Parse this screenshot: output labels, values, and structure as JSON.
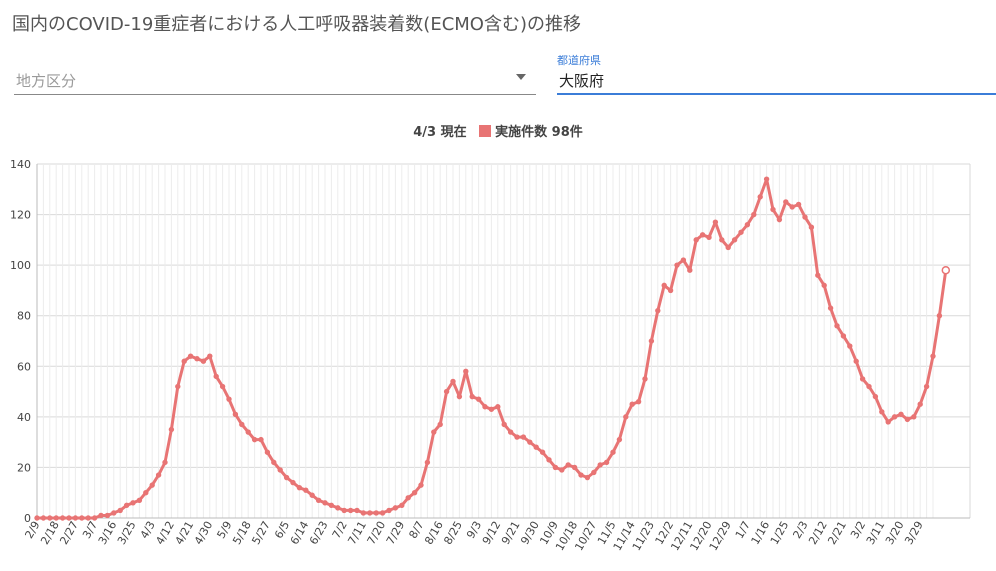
{
  "title": "国内のCOVID-19重症者における人工呼吸器装着数(ECMO含む)の推移",
  "filters": {
    "region": {
      "value": "地方区分"
    },
    "prefecture": {
      "label": "都道府県",
      "value": "大阪府"
    }
  },
  "legend": {
    "date_label": "4/3 現在",
    "series_label": "実施件数 98件"
  },
  "colors": {
    "series": "#e87474",
    "active_field": "#3b7dd8"
  },
  "icons": {
    "dropdown": "chevron-down-icon"
  },
  "chart_data": {
    "type": "line",
    "xlabel": "",
    "ylabel": "",
    "ylim": [
      0,
      140
    ],
    "y_ticks": [
      0,
      20,
      40,
      60,
      80,
      100,
      120,
      140
    ],
    "grid": true,
    "legend_position": "top-center",
    "x_tick_labels": [
      "2/9",
      "2/18",
      "2/27",
      "3/7",
      "3/16",
      "3/25",
      "4/3",
      "4/12",
      "4/21",
      "4/30",
      "5/9",
      "5/18",
      "5/27",
      "6/5",
      "6/14",
      "6/23",
      "7/2",
      "7/11",
      "7/20",
      "7/29",
      "8/7",
      "8/16",
      "8/25",
      "9/3",
      "9/12",
      "9/21",
      "9/30",
      "10/9",
      "10/18",
      "10/27",
      "11/5",
      "11/14",
      "11/23",
      "12/2",
      "12/11",
      "12/20",
      "12/29",
      "1/7",
      "1/16",
      "1/25",
      "2/3",
      "2/12",
      "2/21",
      "3/2",
      "3/11",
      "3/20",
      "3/29"
    ],
    "series": [
      {
        "name": "実施件数",
        "x_start": "2/9",
        "step_days": 3,
        "values": [
          0,
          0,
          0,
          0,
          0,
          0,
          0,
          0,
          0,
          0,
          1,
          1,
          2,
          3,
          5,
          6,
          7,
          10,
          13,
          17,
          22,
          35,
          52,
          62,
          64,
          63,
          62,
          64,
          56,
          52,
          47,
          41,
          37,
          34,
          31,
          31,
          26,
          22,
          19,
          16,
          14,
          12,
          11,
          9,
          7,
          6,
          5,
          4,
          3,
          3,
          3,
          2,
          2,
          2,
          2,
          3,
          4,
          5,
          8,
          10,
          13,
          22,
          34,
          37,
          50,
          54,
          48,
          58,
          48,
          47,
          44,
          43,
          44,
          37,
          34,
          32,
          32,
          30,
          28,
          26,
          23,
          20,
          19,
          21,
          20,
          17,
          16,
          18,
          21,
          22,
          26,
          31,
          40,
          45,
          46,
          55,
          70,
          82,
          92,
          90,
          100,
          102,
          98,
          110,
          112,
          111,
          117,
          110,
          107,
          110,
          113,
          116,
          120,
          127,
          134,
          122,
          118,
          125,
          123,
          124,
          119,
          115,
          96,
          92,
          83,
          76,
          72,
          68,
          62,
          55,
          52,
          48,
          42,
          38,
          40,
          41,
          39,
          40,
          45,
          52,
          64,
          80,
          98
        ]
      }
    ]
  }
}
